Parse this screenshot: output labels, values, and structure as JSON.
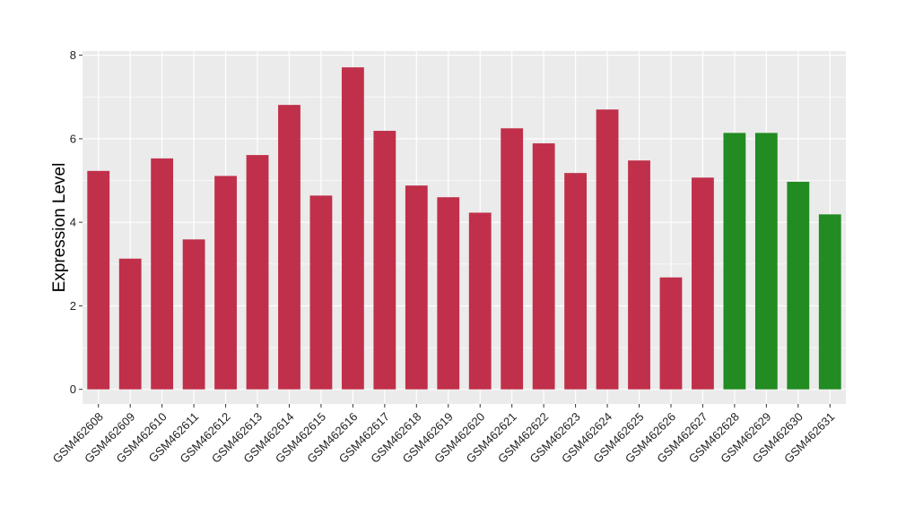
{
  "chart_data": {
    "type": "bar",
    "title": "",
    "xlabel": "",
    "ylabel": "Expression Level",
    "ylim": [
      -0.35,
      8.1
    ],
    "yticks": [
      0,
      2,
      4,
      6,
      8
    ],
    "grid": true,
    "colors": {
      "red": "#C0304A",
      "green": "#228B22",
      "panel": "#EBEBEB",
      "grid": "#FFFFFF"
    },
    "categories": [
      "GSM462608",
      "GSM462609",
      "GSM462610",
      "GSM462611",
      "GSM462612",
      "GSM462613",
      "GSM462614",
      "GSM462615",
      "GSM462616",
      "GSM462617",
      "GSM462618",
      "GSM462619",
      "GSM462620",
      "GSM462621",
      "GSM462622",
      "GSM462623",
      "GSM462624",
      "GSM462625",
      "GSM462626",
      "GSM462627",
      "GSM462628",
      "GSM462629",
      "GSM462630",
      "GSM462631"
    ],
    "values": [
      5.23,
      3.13,
      5.53,
      3.59,
      5.11,
      5.61,
      6.81,
      4.64,
      7.71,
      6.19,
      4.88,
      4.6,
      4.23,
      6.25,
      5.89,
      5.18,
      6.7,
      5.48,
      2.68,
      5.07,
      6.14,
      6.14,
      4.97,
      4.19
    ],
    "bar_groups": [
      "red",
      "red",
      "red",
      "red",
      "red",
      "red",
      "red",
      "red",
      "red",
      "red",
      "red",
      "red",
      "red",
      "red",
      "red",
      "red",
      "red",
      "red",
      "red",
      "red",
      "green",
      "green",
      "green",
      "green"
    ]
  }
}
